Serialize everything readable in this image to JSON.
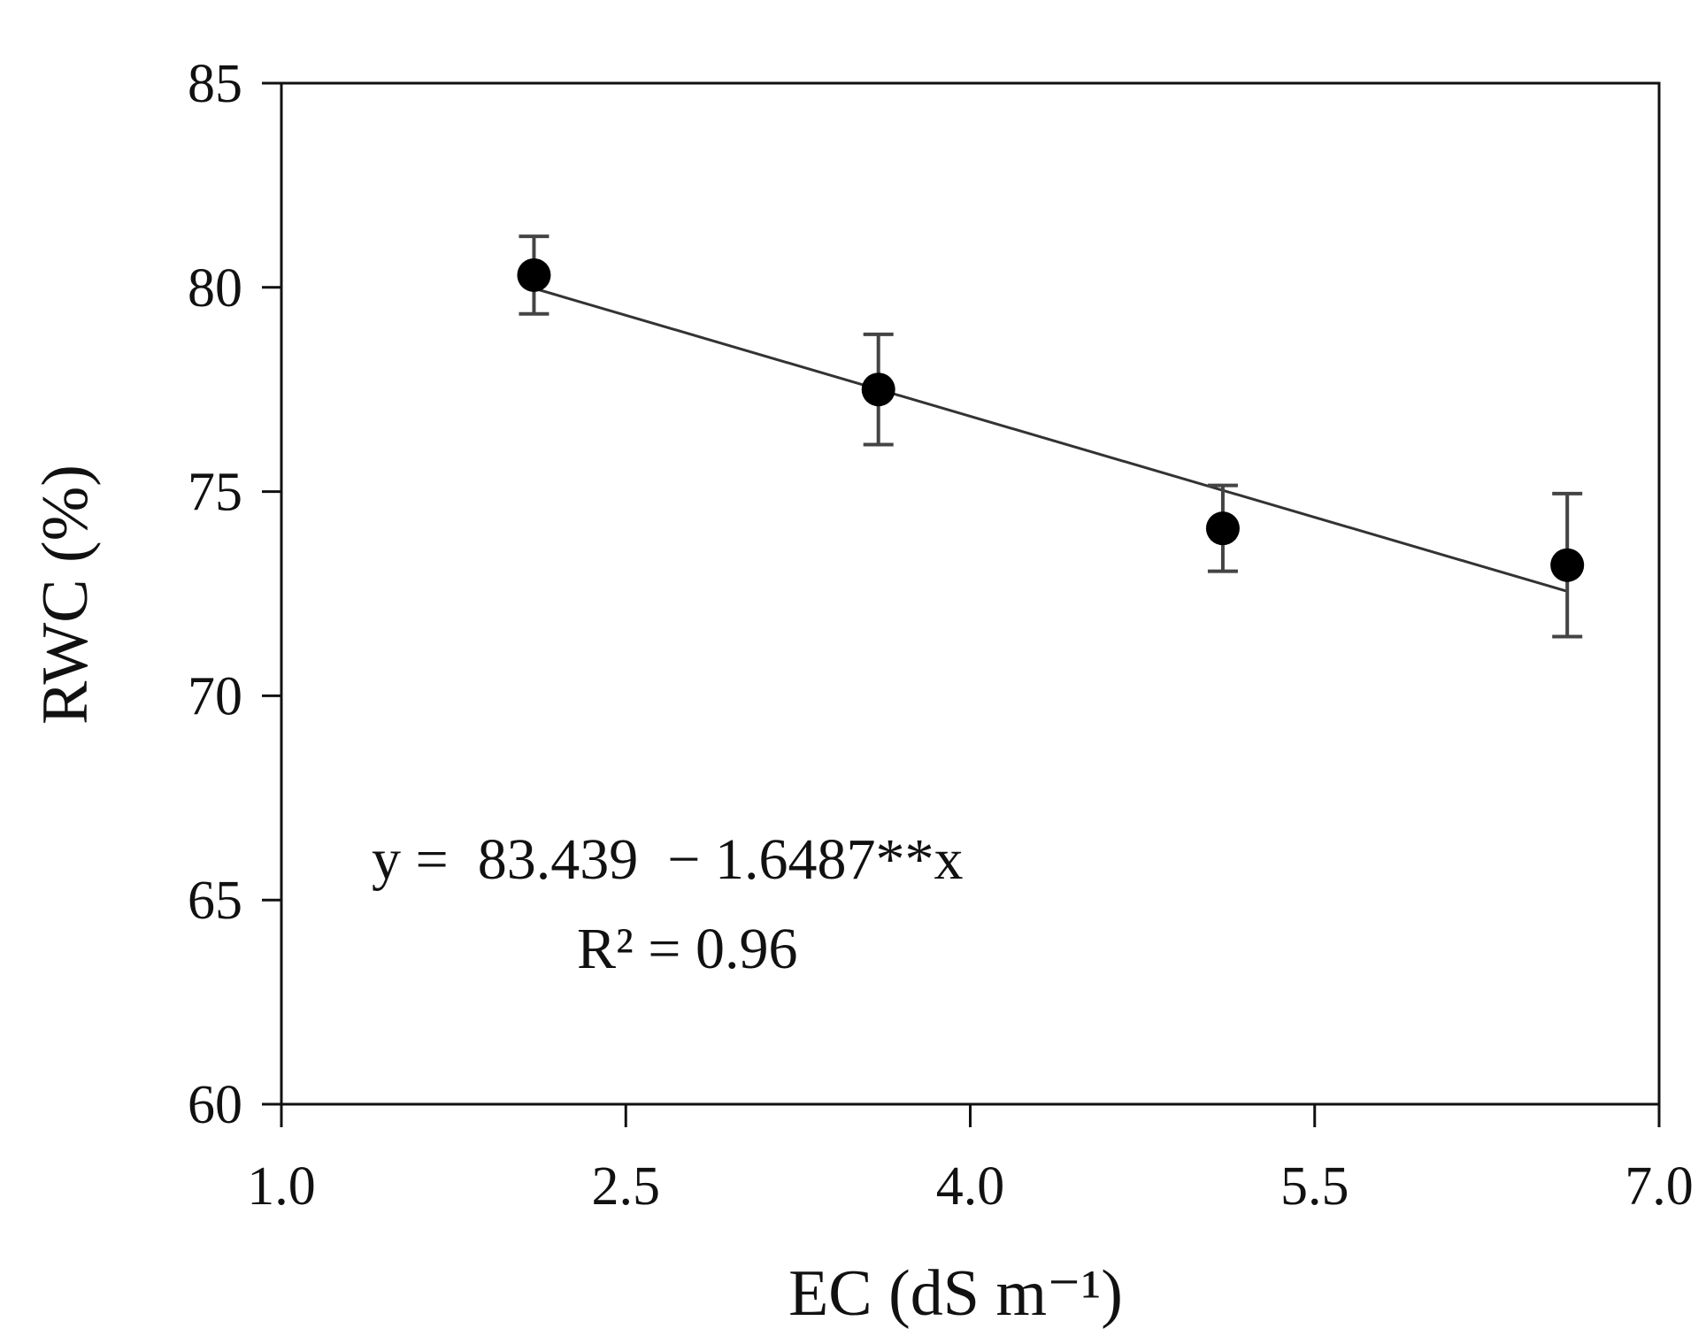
{
  "chart_data": {
    "type": "scatter",
    "xlabel": "EC (dS m⁻¹)",
    "ylabel": "RWC (%)",
    "xlim": [
      1.0,
      7.0
    ],
    "ylim": [
      60,
      85
    ],
    "x_ticks": [
      "1.0",
      "2.5",
      "4.0",
      "5.5",
      "7.0"
    ],
    "y_ticks": [
      "60",
      "65",
      "70",
      "75",
      "80",
      "85"
    ],
    "grid": false,
    "legend": "none",
    "series": [
      {
        "x": [
          2.1,
          3.6,
          5.1,
          6.6
        ],
        "y": [
          80.3,
          77.5,
          74.1,
          73.2
        ],
        "error": [
          0.95,
          1.35,
          1.05,
          1.75
        ],
        "marker_color": "#000000"
      }
    ],
    "trendline": {
      "intercept": 83.439,
      "slope": -1.6487,
      "x_range": [
        2.1,
        6.6
      ],
      "color": "#333333"
    },
    "annotations": {
      "equation": "y =  83.439  − 1.6487**x",
      "r_squared": "R² = 0.96"
    }
  }
}
